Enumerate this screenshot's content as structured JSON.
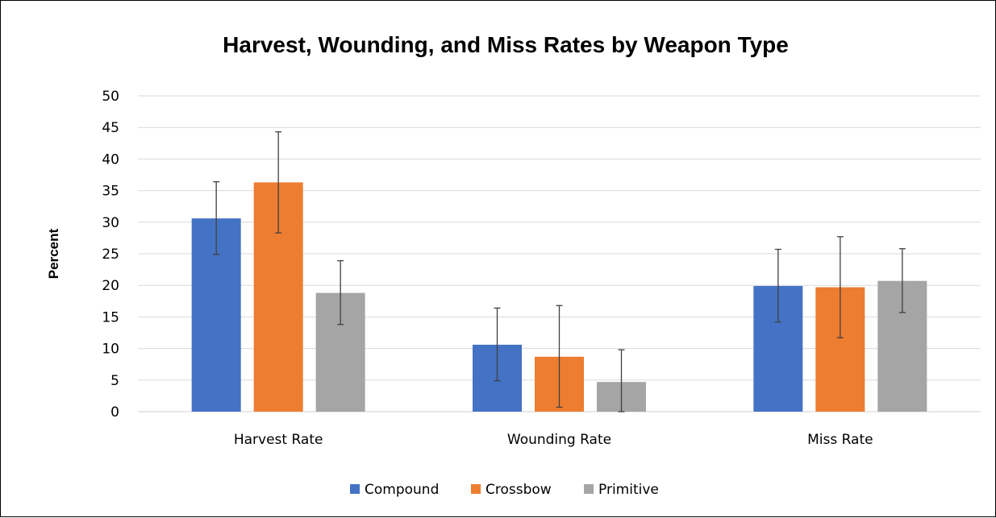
{
  "chart_data": {
    "type": "bar",
    "title": "Harvest, Wounding, and Miss Rates by Weapon Type",
    "xlabel": "",
    "ylabel": "Percent",
    "ylim": [
      0,
      50
    ],
    "yticks": [
      0,
      5,
      10,
      15,
      20,
      25,
      30,
      35,
      40,
      45,
      50
    ],
    "grid": true,
    "legend_position": "bottom",
    "categories": [
      "Harvest Rate",
      "Wounding Rate",
      "Miss Rate"
    ],
    "series": [
      {
        "name": "Compound",
        "color": "#4472C4",
        "values": [
          30.6,
          10.6,
          19.9
        ],
        "error_low": [
          24.9,
          4.9,
          14.2
        ],
        "error_high": [
          36.4,
          16.4,
          25.7
        ]
      },
      {
        "name": "Crossbow",
        "color": "#ED7D31",
        "values": [
          36.3,
          8.7,
          19.7
        ],
        "error_low": [
          28.3,
          0.7,
          11.7
        ],
        "error_high": [
          44.3,
          16.8,
          27.7
        ]
      },
      {
        "name": "Primitive",
        "color": "#A5A5A5",
        "values": [
          18.8,
          4.7,
          20.7
        ],
        "error_low": [
          13.8,
          0.0,
          15.7
        ],
        "error_high": [
          23.9,
          9.8,
          25.8
        ]
      }
    ]
  }
}
